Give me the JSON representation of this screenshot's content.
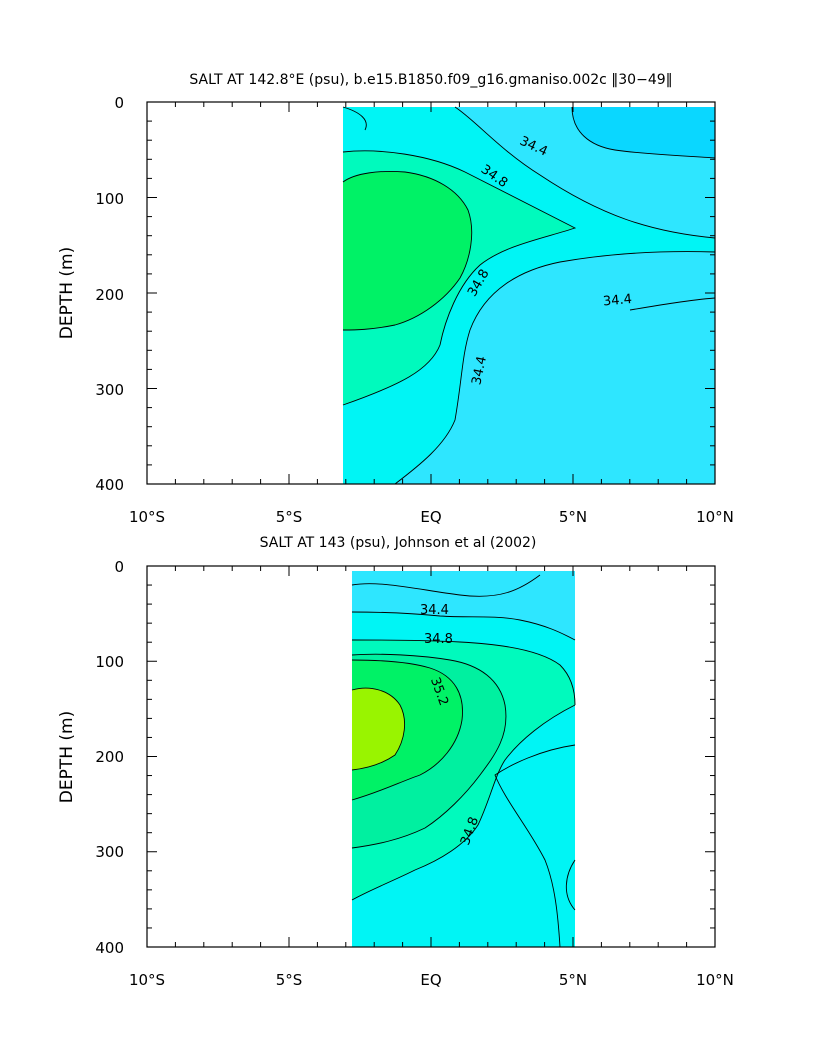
{
  "chart_data": [
    {
      "type": "heatmap",
      "title": "SALT AT 142.8°E (psu), b.e15.B1850.f09_g16.gmaniso.002c ‖30−49‖",
      "xlabel": "",
      "ylabel": "DEPTH (m)",
      "xlim": [
        -10,
        10
      ],
      "ylim": [
        400,
        0
      ],
      "x_tick_labels": [
        "10°S",
        "5°S",
        "EQ",
        "5°N",
        "10°N"
      ],
      "y_tick_labels": [
        "0",
        "100",
        "200",
        "300",
        "400"
      ],
      "data_extent": {
        "lat": [
          -3.1,
          10
        ],
        "depth": [
          5,
          400
        ]
      },
      "contour_levels": [
        34.0,
        34.2,
        34.4,
        34.6,
        34.8,
        35.0
      ],
      "contour_labels": [
        "34.4",
        "34.8",
        "34.8",
        "34.4",
        "34.4"
      ],
      "fill_colors": {
        "34.0": "#0ad7ff",
        "34.4": "#2ee6ff",
        "34.6": "#00f5f5",
        "34.8": "#00fabd",
        "35.0": "#00f266"
      },
      "features": [
        {
          "name": "salinity maximum",
          "value_min": 35.0,
          "lat_range": [
            -3.1,
            1.4
          ],
          "depth_range": [
            75,
            235
          ]
        },
        {
          "name": "surface minimum",
          "value_max": 34.2,
          "lat_range": [
            5,
            10
          ],
          "depth_range": [
            5,
            50
          ]
        }
      ]
    },
    {
      "type": "heatmap",
      "title": "SALT AT 143 (psu), Johnson et al (2002)",
      "xlabel": "",
      "ylabel": "DEPTH (m)",
      "xlim": [
        -10,
        10
      ],
      "ylim": [
        400,
        0
      ],
      "x_tick_labels": [
        "10°S",
        "5°S",
        "EQ",
        "5°N",
        "10°N"
      ],
      "y_tick_labels": [
        "0",
        "100",
        "200",
        "300",
        "400"
      ],
      "data_extent": {
        "lat": [
          -2.8,
          5
        ],
        "depth": [
          5,
          400
        ]
      },
      "contour_levels": [
        34.2,
        34.4,
        34.6,
        34.8,
        35.0,
        35.2,
        35.4
      ],
      "contour_labels": [
        "34.4",
        "34.8",
        "35.2",
        "34.8"
      ],
      "fill_colors": {
        "34.2": "#2ee6ff",
        "34.6": "#00f5f5",
        "34.8": "#00fabd",
        "35.0": "#00f0a0",
        "35.2": "#00f266",
        "35.4": "#99f400"
      },
      "features": [
        {
          "name": "salinity maximum",
          "value_min": 35.4,
          "lat_range": [
            -2.8,
            -0.8
          ],
          "depth_range": [
            140,
            200
          ]
        },
        {
          "name": "surface minimum",
          "value_max": 34.2,
          "lat_range": [
            -2.8,
            5
          ],
          "depth_range": [
            5,
            60
          ]
        }
      ]
    }
  ]
}
